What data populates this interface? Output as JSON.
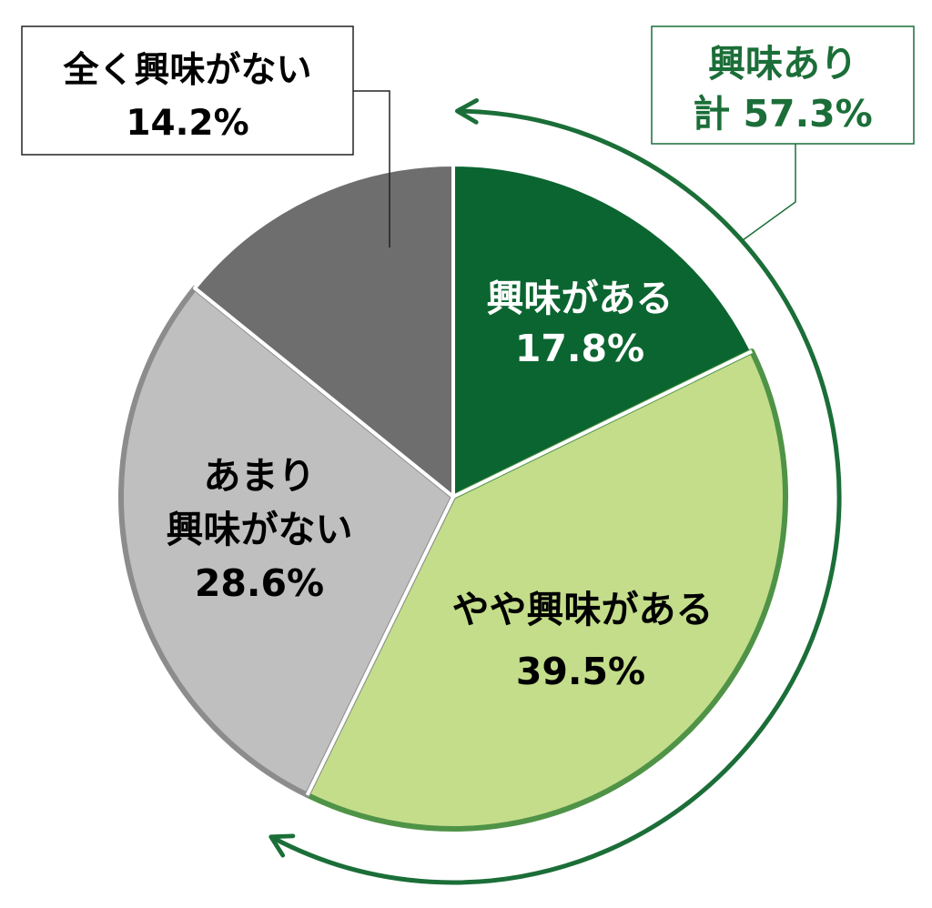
{
  "chart_data": {
    "type": "pie",
    "start": "12 o'clock",
    "direction": "clockwise",
    "slices": [
      {
        "label": "興味がある",
        "label_lines": [
          "興味がある"
        ],
        "value": 17.8,
        "value_label": "17.8%",
        "color": "#0b6530",
        "border": "#ffffff",
        "text_color": "#ffffff"
      },
      {
        "label": "やや興味がある",
        "label_lines": [
          "やや興味がある"
        ],
        "value": 39.5,
        "value_label": "39.5%",
        "color": "#c4dd8a",
        "border": "#4f9347",
        "text_color": "#000000"
      },
      {
        "label": "あまり興味がない",
        "label_lines": [
          "あまり",
          "興味がない"
        ],
        "value": 28.6,
        "value_label": "28.6%",
        "color": "#bfbfbf",
        "border": "#8c8c8c",
        "text_color": "#000000"
      },
      {
        "label": "全く興味がない",
        "label_lines": [
          "全く興味がない"
        ],
        "value": 14.2,
        "value_label": "14.2%",
        "color": "#6e6e6e",
        "border": "#ffffff",
        "text_color": "#000000"
      }
    ],
    "callouts": [
      {
        "slice": "全く興味がない",
        "lines": [
          "全く興味がない",
          "14.2%"
        ]
      }
    ],
    "group_annotation": {
      "lines": [
        "興味あり",
        "計 57.3%"
      ],
      "value": 57.3,
      "slices": [
        "興味がある",
        "やや興味がある"
      ],
      "color": "#1b6e38"
    }
  }
}
